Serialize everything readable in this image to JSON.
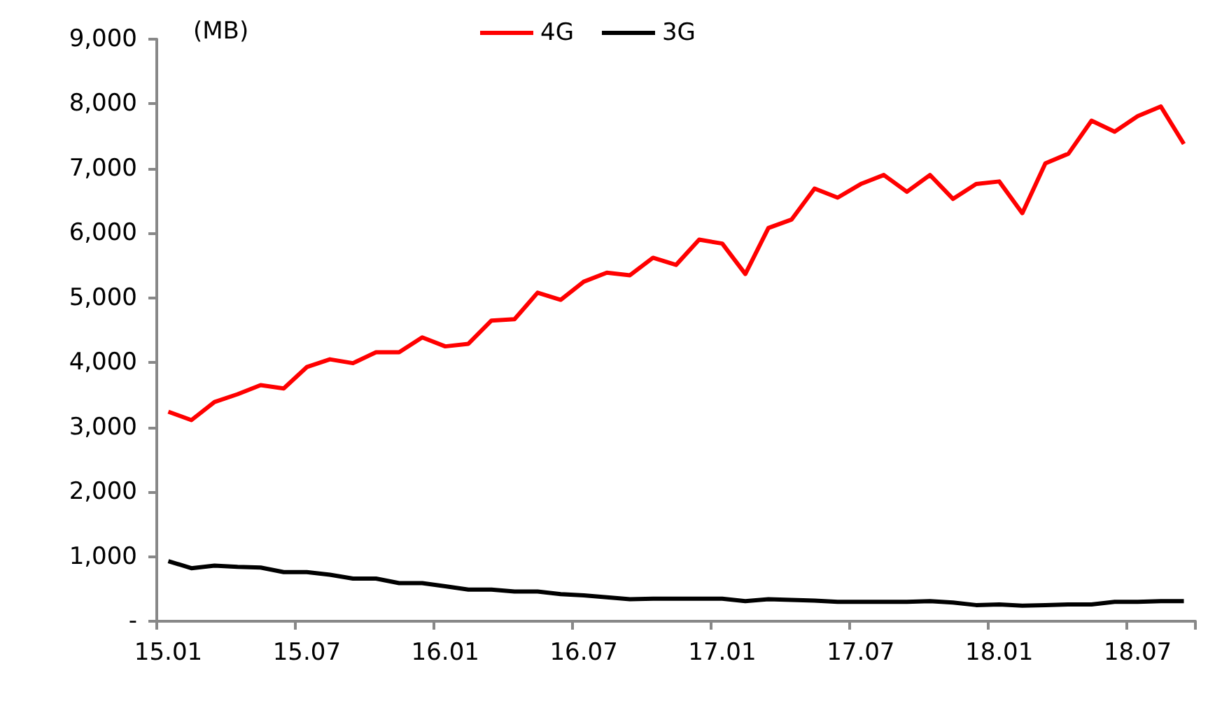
{
  "chart_data": {
    "type": "line",
    "annotations": [
      "(MB)"
    ],
    "categories": [
      "15.01",
      null,
      null,
      null,
      null,
      null,
      "15.07",
      null,
      null,
      null,
      null,
      null,
      "16.01",
      null,
      null,
      null,
      null,
      null,
      "16.07",
      null,
      null,
      null,
      null,
      null,
      "17.01",
      null,
      null,
      null,
      null,
      null,
      "17.07",
      null,
      null,
      null,
      null,
      null,
      "18.01",
      null,
      null,
      null,
      null,
      null,
      "18.07",
      null,
      null
    ],
    "series": [
      {
        "name": "4G",
        "color": "#ff0000",
        "values": [
          3240,
          3110,
          3390,
          3510,
          3650,
          3600,
          3930,
          4050,
          3990,
          4160,
          4160,
          4390,
          4250,
          4290,
          4650,
          4670,
          5080,
          4970,
          5250,
          5390,
          5350,
          5620,
          5510,
          5900,
          5840,
          5370,
          6080,
          6210,
          6690,
          6550,
          6760,
          6900,
          6640,
          6900,
          6530,
          6760,
          6800,
          6310,
          7080,
          7230,
          7740,
          7570,
          7810,
          7960,
          7380
        ]
      },
      {
        "name": "3G",
        "color": "#000000",
        "values": [
          930,
          820,
          860,
          840,
          830,
          760,
          760,
          720,
          660,
          660,
          590,
          590,
          540,
          490,
          490,
          460,
          460,
          420,
          400,
          370,
          340,
          350,
          350,
          350,
          350,
          310,
          340,
          330,
          320,
          300,
          300,
          300,
          300,
          310,
          290,
          250,
          260,
          240,
          250,
          260,
          260,
          300,
          300,
          310,
          310
        ]
      }
    ],
    "ylim": [
      0,
      9000
    ],
    "yticks": [
      {
        "value": 0,
        "label": "-"
      },
      {
        "value": 1000,
        "label": "1,000"
      },
      {
        "value": 2000,
        "label": "2,000"
      },
      {
        "value": 3000,
        "label": "3,000"
      },
      {
        "value": 4000,
        "label": "4,000"
      },
      {
        "value": 5000,
        "label": "5,000"
      },
      {
        "value": 6000,
        "label": "6,000"
      },
      {
        "value": 7000,
        "label": "7,000"
      },
      {
        "value": 8000,
        "label": "8,000"
      },
      {
        "value": 9000,
        "label": "9,000"
      }
    ],
    "grid": false,
    "legend": "top",
    "marker": "none",
    "line_style": "solid"
  }
}
